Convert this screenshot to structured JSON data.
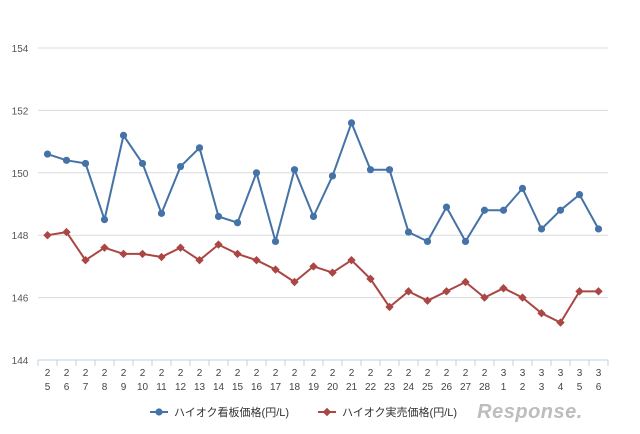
{
  "chart_data": {
    "type": "line",
    "x_categories": [
      [
        "2",
        "5"
      ],
      [
        "2",
        "6"
      ],
      [
        "2",
        "7"
      ],
      [
        "2",
        "8"
      ],
      [
        "2",
        "9"
      ],
      [
        "2",
        "10"
      ],
      [
        "2",
        "11"
      ],
      [
        "2",
        "12"
      ],
      [
        "2",
        "13"
      ],
      [
        "2",
        "14"
      ],
      [
        "2",
        "15"
      ],
      [
        "2",
        "16"
      ],
      [
        "2",
        "17"
      ],
      [
        "2",
        "18"
      ],
      [
        "2",
        "19"
      ],
      [
        "2",
        "20"
      ],
      [
        "2",
        "21"
      ],
      [
        "2",
        "22"
      ],
      [
        "2",
        "23"
      ],
      [
        "2",
        "24"
      ],
      [
        "2",
        "25"
      ],
      [
        "2",
        "26"
      ],
      [
        "2",
        "27"
      ],
      [
        "2",
        "28"
      ],
      [
        "3",
        "1"
      ],
      [
        "3",
        "2"
      ],
      [
        "3",
        "3"
      ],
      [
        "3",
        "4"
      ],
      [
        "3",
        "5"
      ],
      [
        "3",
        "6"
      ]
    ],
    "yticks": [
      "144",
      "146",
      "148",
      "150",
      "152",
      "154"
    ],
    "ylim": [
      144,
      154
    ],
    "grid": "horizontal",
    "legend_position": "bottom",
    "series": [
      {
        "name": "ハイオク看板価格(円/L)",
        "color": "#4572a7",
        "marker": "circle",
        "values": [
          150.6,
          150.4,
          150.3,
          148.5,
          151.2,
          150.3,
          148.7,
          150.2,
          150.8,
          148.6,
          148.4,
          150.0,
          147.8,
          150.1,
          148.6,
          149.9,
          151.6,
          150.1,
          150.1,
          148.1,
          147.8,
          148.9,
          147.8,
          148.8,
          148.8,
          149.5,
          148.2,
          148.8,
          149.3,
          148.2
        ]
      },
      {
        "name": "ハイオク実売価格(円/L)",
        "color": "#aa4643",
        "marker": "diamond",
        "values": [
          148.0,
          148.1,
          147.2,
          147.6,
          147.4,
          147.4,
          147.3,
          147.6,
          147.2,
          147.7,
          147.4,
          147.2,
          146.9,
          146.5,
          147.0,
          146.8,
          147.2,
          146.6,
          145.7,
          146.2,
          145.9,
          146.2,
          146.5,
          146.0,
          146.3,
          146.0,
          145.5,
          145.2,
          146.2,
          146.2
        ]
      }
    ]
  },
  "watermark_text": "Response."
}
